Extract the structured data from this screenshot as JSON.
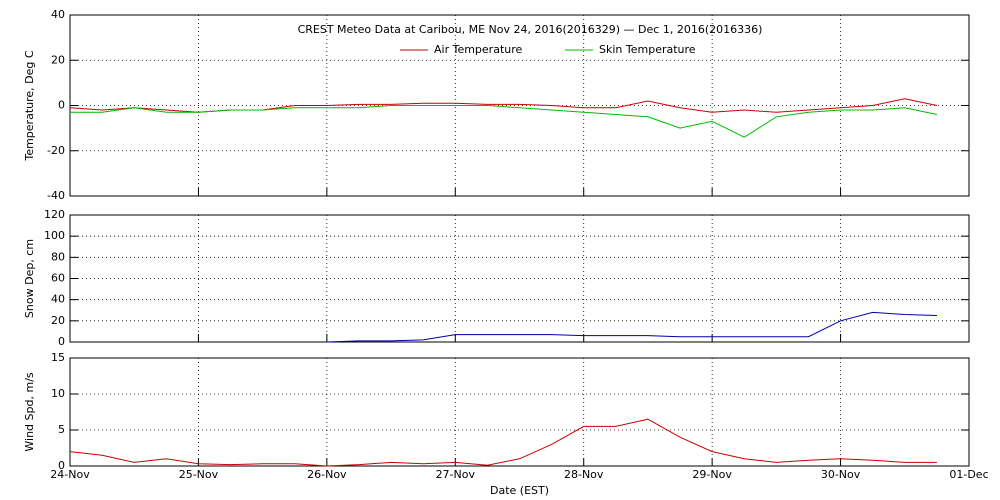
{
  "chart_data": [
    {
      "type": "line",
      "title": "CREST Meteo Data at Caribou, ME   Nov 24, 2016(2016329) — Dec  1, 2016(2016336)",
      "ylabel": "Temperature, Deg C",
      "xlim": [
        329,
        336
      ],
      "ylim": [
        -40,
        40
      ],
      "yticks": [
        -40,
        -20,
        0,
        20,
        40
      ],
      "grid": true,
      "x": [
        329,
        329.25,
        329.5,
        329.75,
        330,
        330.25,
        330.5,
        330.75,
        331,
        331.25,
        331.5,
        331.75,
        332,
        332.25,
        332.5,
        332.75,
        333,
        333.25,
        333.5,
        333.75,
        334,
        334.25,
        334.5,
        334.75,
        335,
        335.25,
        335.5,
        335.75
      ],
      "series": [
        {
          "name": "Air Temperature",
          "color": "#cc0000",
          "values": [
            -1,
            -2,
            -1,
            -2,
            -3,
            -2,
            -2,
            0,
            0,
            0.5,
            0.5,
            1,
            1,
            0.5,
            0.5,
            0,
            -1,
            -1,
            2,
            -1,
            -3,
            -2,
            -3,
            -2,
            -1,
            0,
            3,
            0
          ]
        },
        {
          "name": "Skin Temperature",
          "color": "#00bb00",
          "values": [
            -3,
            -3,
            -1,
            -3,
            -3,
            -2,
            -2,
            -1,
            -1,
            -1,
            0,
            0,
            0,
            0,
            -1,
            -2,
            -3,
            -4,
            -5,
            -10,
            -7,
            -14,
            -5,
            -3,
            -2,
            -2,
            -1,
            -4
          ]
        }
      ]
    },
    {
      "type": "line",
      "ylabel": "Snow Dep, cm",
      "xlim": [
        329,
        336
      ],
      "ylim": [
        0,
        120
      ],
      "yticks": [
        0,
        20,
        40,
        60,
        80,
        100,
        120
      ],
      "grid": true,
      "x": [
        329,
        329.25,
        329.5,
        329.75,
        330,
        330.25,
        330.5,
        330.75,
        331,
        331.25,
        331.5,
        331.75,
        332,
        332.25,
        332.5,
        332.75,
        333,
        333.25,
        333.5,
        333.75,
        334,
        334.25,
        334.5,
        334.75,
        335,
        335.25,
        335.5,
        335.75
      ],
      "series": [
        {
          "color": "#0000aa",
          "values": [
            null,
            null,
            null,
            null,
            null,
            null,
            null,
            null,
            0,
            1,
            1,
            2,
            7,
            7,
            7,
            7,
            6,
            6,
            6,
            5,
            5,
            5,
            5,
            5,
            20,
            28,
            26,
            25
          ]
        }
      ]
    },
    {
      "type": "line",
      "ylabel": "Wind Spd, m/s",
      "xlabel": "Date (EST)",
      "xlim": [
        329,
        336
      ],
      "ylim": [
        0,
        15
      ],
      "yticks": [
        0,
        5,
        10,
        15
      ],
      "grid": true,
      "xticks": [
        {
          "value": 329,
          "label": "24-Nov"
        },
        {
          "value": 330,
          "label": "25-Nov"
        },
        {
          "value": 331,
          "label": "26-Nov"
        },
        {
          "value": 332,
          "label": "27-Nov"
        },
        {
          "value": 333,
          "label": "28-Nov"
        },
        {
          "value": 334,
          "label": "29-Nov"
        },
        {
          "value": 335,
          "label": "30-Nov"
        },
        {
          "value": 336,
          "label": "01-Dec"
        }
      ],
      "x": [
        329,
        329.25,
        329.5,
        329.75,
        330,
        330.25,
        330.5,
        330.75,
        331,
        331.25,
        331.5,
        331.75,
        332,
        332.25,
        332.5,
        332.75,
        333,
        333.25,
        333.5,
        333.75,
        334,
        334.25,
        334.5,
        334.75,
        335,
        335.25,
        335.5,
        335.75
      ],
      "series": [
        {
          "color": "#cc0000",
          "values": [
            2,
            1.5,
            0.5,
            1,
            0.3,
            0.2,
            0.3,
            0.3,
            0,
            0.2,
            0.5,
            0.3,
            0.5,
            0.1,
            1,
            3,
            5.5,
            5.5,
            6.5,
            4,
            2,
            1,
            0.5,
            0.8,
            1,
            0.8,
            0.5,
            0.5
          ]
        }
      ]
    }
  ]
}
